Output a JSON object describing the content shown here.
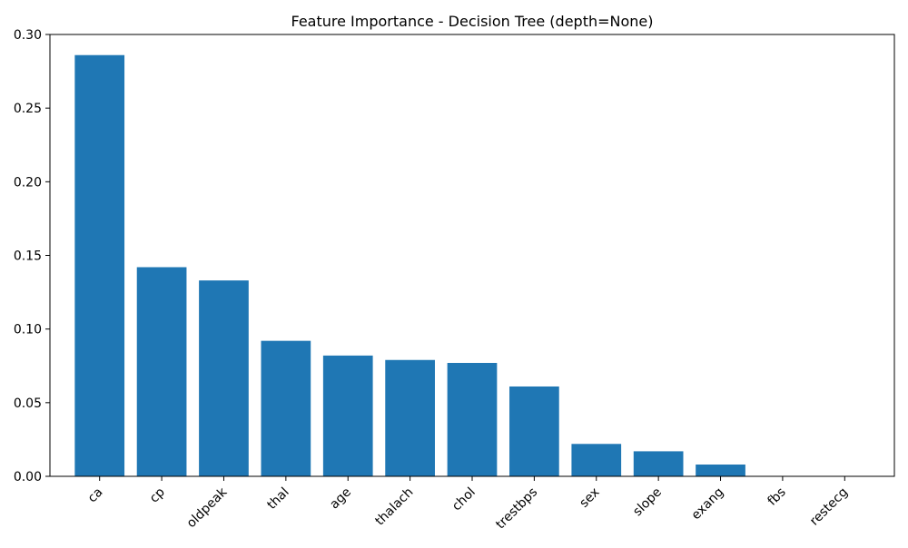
{
  "chart_data": {
    "type": "bar",
    "title": "Feature Importance - Decision Tree (depth=None)",
    "xlabel": "",
    "ylabel": "",
    "categories": [
      "ca",
      "cp",
      "oldpeak",
      "thal",
      "age",
      "thalach",
      "chol",
      "trestbps",
      "sex",
      "slope",
      "exang",
      "fbs",
      "restecg"
    ],
    "values": [
      0.286,
      0.142,
      0.133,
      0.092,
      0.082,
      0.079,
      0.077,
      0.061,
      0.022,
      0.017,
      0.008,
      0.0,
      0.0
    ],
    "ylim": [
      0,
      0.3
    ],
    "yticks": [
      "0.00",
      "0.05",
      "0.10",
      "0.15",
      "0.20",
      "0.25",
      "0.30"
    ],
    "bar_color": "#1f77b4",
    "grid": false,
    "legend": "none"
  }
}
